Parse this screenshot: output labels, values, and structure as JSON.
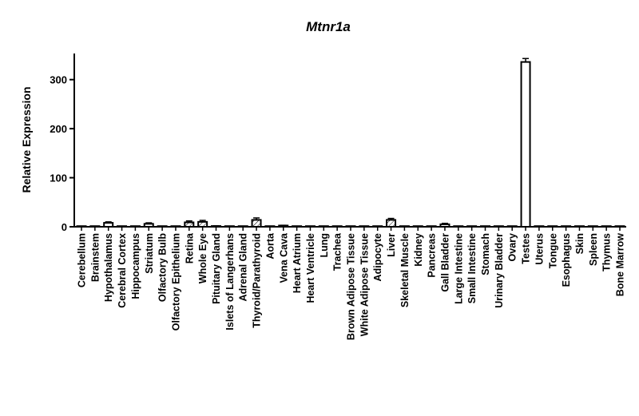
{
  "chart_data": {
    "type": "bar",
    "title": "Mtnr1a",
    "ylabel": "Relative Expression",
    "xlabel": "",
    "ylim": [
      0,
      350
    ],
    "yticks": [
      0,
      100,
      200,
      300
    ],
    "grid": false,
    "legend": "none",
    "categories": [
      "Cerebellum",
      "Brainstem",
      "Hypothalamus",
      "Cerebral Cortex",
      "Hippocampus",
      "Striatum",
      "Olfactory Bulb",
      "Olfactory Epithelium",
      "Retina",
      "Whole Eye",
      "Pituitary Gland",
      "Islets of Langerhans",
      "Adrenal Gland",
      "Thyroid/Parathyroid",
      "Aorta",
      "Vena Cava",
      "Heart Atrium",
      "Heart Ventricle",
      "Lung",
      "Trachea",
      "Brown Adipose Tissue",
      "White Adipose Tissue",
      "Adipocyte",
      "Liver",
      "Skeletal Muscle",
      "Kidney",
      "Pancreas",
      "Gall Bladder",
      "Large Intestine",
      "Small Intestine",
      "Stomach",
      "Urinary Bladder",
      "Ovary",
      "Testes",
      "Uterus",
      "Tongue",
      "Esophagus",
      "Skin",
      "Spleen",
      "Thymus",
      "Bone Marrow"
    ],
    "values": [
      0.3,
      0.3,
      8,
      0.3,
      0.3,
      6,
      0.3,
      0.3,
      9,
      10,
      1.5,
      0.5,
      0.3,
      14,
      0.3,
      2.5,
      0.3,
      0.3,
      0.3,
      0.3,
      0.3,
      0.3,
      0.3,
      14,
      0.3,
      0.3,
      0.3,
      5,
      0.3,
      0.3,
      0.3,
      0.3,
      0.3,
      336,
      0.3,
      0.3,
      0.3,
      0.3,
      0.3,
      0.3,
      0.3
    ],
    "errors": [
      0,
      0,
      2,
      0,
      0,
      2,
      0,
      0,
      3,
      3,
      0.5,
      0,
      0,
      4,
      0,
      0.5,
      0,
      0,
      0,
      0,
      0,
      0,
      0,
      3,
      0,
      0,
      0,
      2,
      0,
      0,
      0,
      0,
      0,
      7,
      0,
      0,
      0,
      0,
      0,
      0,
      0
    ],
    "hatched": [
      "Retina",
      "Whole Eye",
      "Thyroid/Parathyroid",
      "Liver"
    ]
  }
}
